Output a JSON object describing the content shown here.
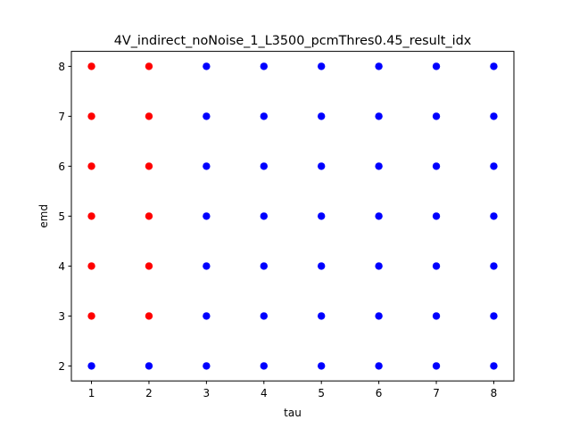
{
  "chart_data": {
    "type": "scatter",
    "title": "4V_indirect_noNoise_1_L3500_pcmThres0.45_result_idx",
    "xlabel": "tau",
    "ylabel": "emd",
    "xlim": [
      0.65,
      8.35
    ],
    "ylim": [
      1.7,
      8.3
    ],
    "x_ticks": [
      1,
      2,
      3,
      4,
      5,
      6,
      7,
      8
    ],
    "y_ticks": [
      2,
      3,
      4,
      5,
      6,
      7,
      8
    ],
    "grid": false,
    "legend": "none",
    "colors": {
      "red": "#ff0000",
      "blue": "#0000ff"
    },
    "series": [
      {
        "color": "#ff0000",
        "points": [
          [
            1,
            3
          ],
          [
            1,
            4
          ],
          [
            1,
            5
          ],
          [
            1,
            6
          ],
          [
            1,
            7
          ],
          [
            1,
            8
          ],
          [
            2,
            3
          ],
          [
            2,
            4
          ],
          [
            2,
            5
          ],
          [
            2,
            6
          ],
          [
            2,
            7
          ],
          [
            2,
            8
          ]
        ]
      },
      {
        "color": "#0000ff",
        "points": [
          [
            1,
            2
          ],
          [
            2,
            2
          ],
          [
            3,
            2
          ],
          [
            3,
            3
          ],
          [
            3,
            4
          ],
          [
            3,
            5
          ],
          [
            3,
            6
          ],
          [
            3,
            7
          ],
          [
            3,
            8
          ],
          [
            4,
            2
          ],
          [
            4,
            3
          ],
          [
            4,
            4
          ],
          [
            4,
            5
          ],
          [
            4,
            6
          ],
          [
            4,
            7
          ],
          [
            4,
            8
          ],
          [
            5,
            2
          ],
          [
            5,
            3
          ],
          [
            5,
            4
          ],
          [
            5,
            5
          ],
          [
            5,
            6
          ],
          [
            5,
            7
          ],
          [
            5,
            8
          ],
          [
            6,
            2
          ],
          [
            6,
            3
          ],
          [
            6,
            4
          ],
          [
            6,
            5
          ],
          [
            6,
            6
          ],
          [
            6,
            7
          ],
          [
            6,
            8
          ],
          [
            7,
            2
          ],
          [
            7,
            3
          ],
          [
            7,
            4
          ],
          [
            7,
            5
          ],
          [
            7,
            6
          ],
          [
            7,
            7
          ],
          [
            7,
            8
          ],
          [
            8,
            2
          ],
          [
            8,
            3
          ],
          [
            8,
            4
          ],
          [
            8,
            5
          ],
          [
            8,
            6
          ],
          [
            8,
            7
          ],
          [
            8,
            8
          ]
        ]
      }
    ]
  }
}
